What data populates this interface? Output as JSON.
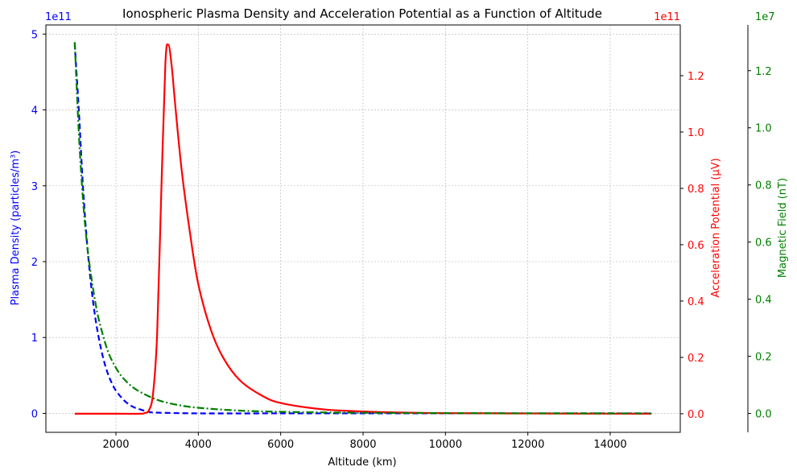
{
  "chart_data": {
    "type": "line",
    "title": "Ionospheric Plasma Density and Acceleration Potential as a Function of Altitude",
    "xlabel": "Altitude (km)",
    "xlim": [
      300,
      15700
    ],
    "x_ticks": [
      2000,
      4000,
      6000,
      8000,
      10000,
      12000,
      14000
    ],
    "grid": true,
    "axes": {
      "left": {
        "label": "Plasma Density (particles/m³)",
        "color": "#0000ff",
        "multiplier": "1e11",
        "ylim": [
          -0.25,
          5.12
        ],
        "ticks": [
          0,
          1,
          2,
          3,
          4,
          5
        ]
      },
      "right1": {
        "label": "Acceleration Potential (µV)",
        "color": "#ff0000",
        "multiplier": "1e11",
        "ylim": [
          -0.066,
          1.38
        ],
        "ticks": [
          0.0,
          0.2,
          0.4,
          0.6,
          0.8,
          1.0,
          1.2
        ]
      },
      "right2": {
        "label": "Magnetic Field (nT)",
        "color": "#008000",
        "multiplier": "1e7",
        "ylim": [
          -0.066,
          1.36
        ],
        "ticks": [
          0.0,
          0.2,
          0.4,
          0.6,
          0.8,
          1.0,
          1.2
        ]
      }
    },
    "series": [
      {
        "axis": "left",
        "color": "#0000ff",
        "style": "dashed",
        "x": [
          1000,
          1100,
          1200,
          1300,
          1400,
          1500,
          1600,
          1700,
          1800,
          1900,
          2000,
          2200,
          2400,
          2600,
          2800,
          3000,
          4000,
          6000,
          8000,
          10000,
          12000,
          14000,
          15000
        ],
        "y": [
          4.87,
          3.99,
          2.99,
          2.24,
          1.68,
          1.26,
          0.95,
          0.71,
          0.53,
          0.4,
          0.3,
          0.17,
          0.09,
          0.05,
          0.02,
          0.01,
          0.0,
          0.0,
          0.0,
          0.0,
          0.0,
          0.0,
          0.0
        ]
      },
      {
        "axis": "right1",
        "color": "#ff0000",
        "style": "solid",
        "x": [
          1000,
          2000,
          2600,
          2700,
          2800,
          2900,
          3000,
          3100,
          3200,
          3270,
          3350,
          3450,
          3600,
          3800,
          4000,
          4300,
          4600,
          5000,
          5500,
          6000,
          7000,
          8000,
          9000,
          10000,
          12000,
          15000
        ],
        "y": [
          0.0,
          0.0,
          0.0,
          0.003,
          0.012,
          0.07,
          0.28,
          0.78,
          1.24,
          1.31,
          1.24,
          1.08,
          0.86,
          0.64,
          0.46,
          0.3,
          0.2,
          0.12,
          0.068,
          0.038,
          0.016,
          0.008,
          0.004,
          0.002,
          0.001,
          0.0
        ]
      },
      {
        "axis": "right2",
        "color": "#008000",
        "style": "dashdot",
        "x": [
          1000,
          1100,
          1200,
          1300,
          1400,
          1500,
          1600,
          1800,
          2000,
          2200,
          2500,
          3000,
          3500,
          4000,
          5000,
          6000,
          7000,
          8000,
          10000,
          12000,
          15000
        ],
        "y": [
          1.3,
          0.98,
          0.75,
          0.59,
          0.48,
          0.39,
          0.32,
          0.22,
          0.16,
          0.12,
          0.083,
          0.048,
          0.03,
          0.02,
          0.01,
          0.006,
          0.0038,
          0.0025,
          0.0012,
          0.0007,
          0.0004
        ]
      }
    ]
  }
}
